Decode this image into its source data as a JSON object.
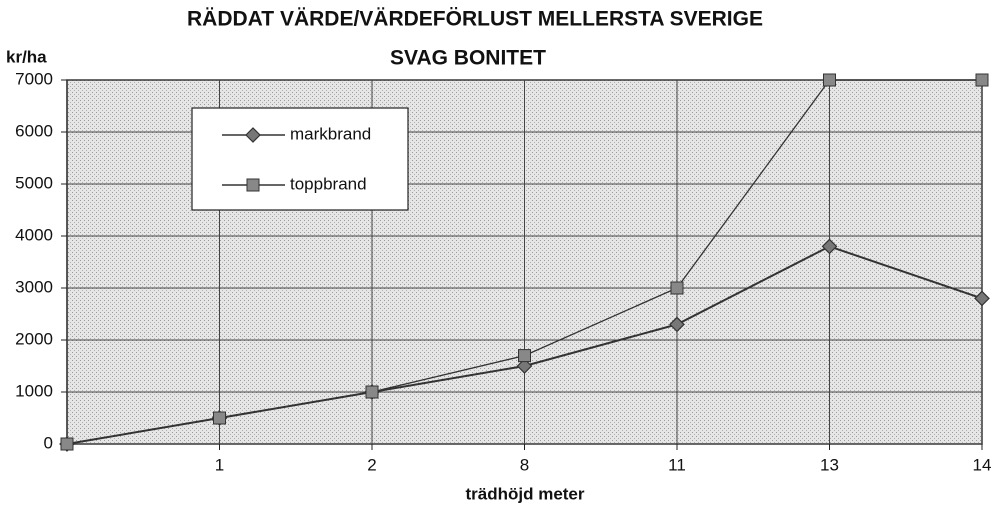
{
  "chart_data": {
    "type": "line",
    "title": "RÄDDAT VÄRDE/VÄRDEFÖRLUST MELLERSTA SVERIGE",
    "subtitle": "SVAG BONITET",
    "y_label": "kr/ha",
    "x_label": "trädhöjd meter",
    "categories": [
      null,
      "1",
      "2",
      "8",
      "11",
      "13",
      "14"
    ],
    "series": [
      {
        "name": "markbrand",
        "color": "#333333",
        "marker": "diamond",
        "values": [
          0,
          500,
          1000,
          1500,
          2300,
          3800,
          2800
        ]
      },
      {
        "name": "toppbrand",
        "color": "#333333",
        "marker": "square",
        "values": [
          0,
          500,
          1000,
          1700,
          3000,
          7000,
          7000
        ]
      }
    ],
    "ylim": [
      0,
      7000
    ],
    "yticks": [
      0,
      1000,
      2000,
      3000,
      4000,
      5000,
      6000,
      7000
    ],
    "grid": true
  }
}
